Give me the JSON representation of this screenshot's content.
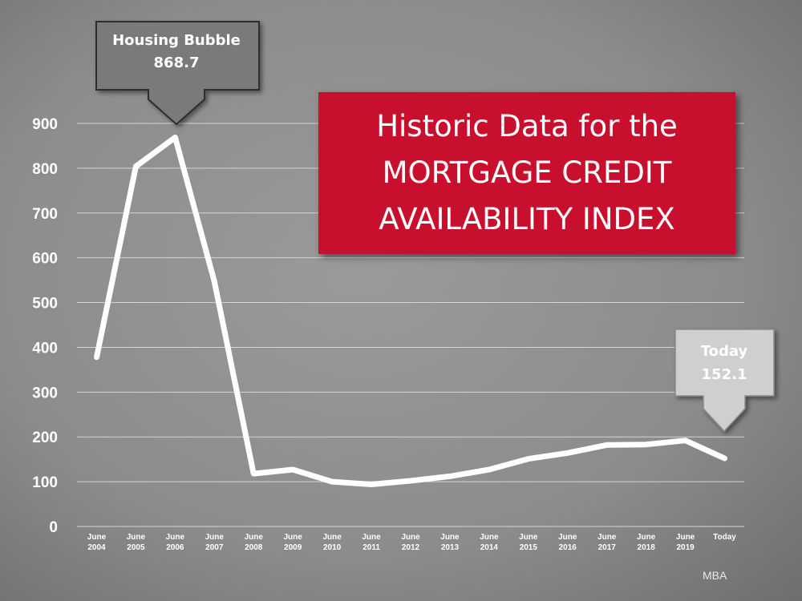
{
  "title": {
    "line1": "Historic Data for the",
    "line2": "MORTGAGE CREDIT",
    "line3": "AVAILABILITY INDEX",
    "bg_color": "#c8102e"
  },
  "source": "MBA",
  "callouts": {
    "peak": {
      "line1": "Housing Bubble",
      "line2": "868.7"
    },
    "today": {
      "line1": "Today",
      "line2": "152.1"
    }
  },
  "chart_data": {
    "type": "line",
    "categories": [
      [
        "June",
        "2004"
      ],
      [
        "June",
        "2005"
      ],
      [
        "June",
        "2006"
      ],
      [
        "June",
        "2007"
      ],
      [
        "June",
        "2008"
      ],
      [
        "June",
        "2009"
      ],
      [
        "June",
        "2010"
      ],
      [
        "June",
        "2011"
      ],
      [
        "June",
        "2012"
      ],
      [
        "June",
        "2013"
      ],
      [
        "June",
        "2014"
      ],
      [
        "June",
        "2015"
      ],
      [
        "June",
        "2016"
      ],
      [
        "June",
        "2017"
      ],
      [
        "June",
        "2018"
      ],
      [
        "June",
        "2019"
      ],
      [
        "Today"
      ]
    ],
    "series": [
      {
        "values": [
          378,
          804,
          868.7,
          547,
          118,
          127,
          100,
          94,
          102,
          112,
          127,
          151,
          164,
          182,
          183,
          192,
          152.1
        ],
        "color": "#ffffff"
      }
    ],
    "y_ticks": [
      0,
      100,
      200,
      300,
      400,
      500,
      600,
      700,
      800,
      900
    ],
    "ylim": [
      0,
      900
    ],
    "grid": true
  }
}
